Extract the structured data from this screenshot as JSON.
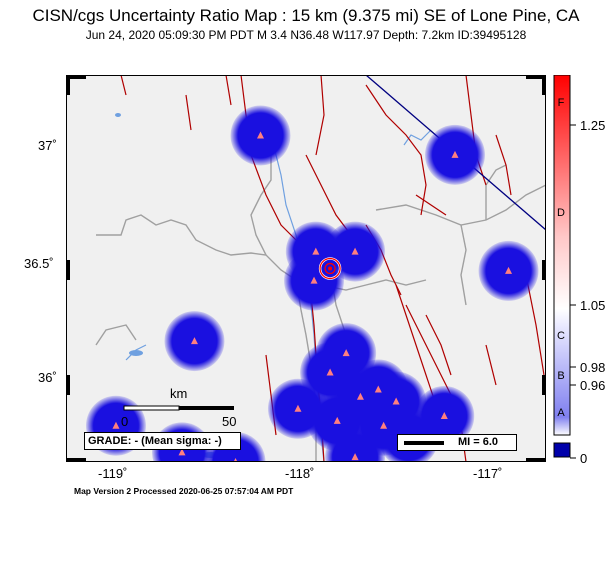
{
  "title": "CISN/cgs Uncertainty Ratio Map : 15 km (9.375 mi) SE of Lone Pine, CA",
  "subtitle": "Jun 24, 2020 05:09:30 PM PDT   M 3.4   N36.48 W117.97   Depth: 7.2km   ID:39495128",
  "lat_ticks": [
    "37˚",
    "36.5˚",
    "36˚"
  ],
  "lon_ticks": [
    "-119˚",
    "-118˚",
    "-117˚"
  ],
  "colorbar": {
    "letters": [
      "F",
      "D",
      "C",
      "B",
      "A"
    ],
    "values": [
      "1.25",
      "1.05",
      "0.98",
      "0.96",
      "0"
    ],
    "bottom_color": "#0000aa",
    "top_color": "#ff0000"
  },
  "scale": {
    "unit": "km",
    "left": "0",
    "right": "50"
  },
  "grade_box": "GRADE: - (Mean sigma: -)",
  "mi_legend": "MI = 6.0",
  "footer": "Map Version 2 Processed 2020-06-25 07:57:04 AM PDT",
  "colors": {
    "map_bg": "#f0f0f0",
    "uncertainty_blob": "#1a10e0",
    "fault": "#b00000",
    "river": "#6fa0e0",
    "county": "#a0a0a0",
    "station": "#ff7f7f",
    "epicenter": "#ff0000"
  },
  "stations": [
    {
      "lon": -118.36,
      "lat": 37.03
    },
    {
      "lon": -117.27,
      "lat": 36.95
    },
    {
      "lon": -118.05,
      "lat": 36.55
    },
    {
      "lon": -117.83,
      "lat": 36.55
    },
    {
      "lon": -118.06,
      "lat": 36.43
    },
    {
      "lon": -116.97,
      "lat": 36.47
    },
    {
      "lon": -118.73,
      "lat": 36.18
    },
    {
      "lon": -117.88,
      "lat": 36.13
    },
    {
      "lon": -117.97,
      "lat": 36.05
    },
    {
      "lon": -117.8,
      "lat": 35.95
    },
    {
      "lon": -117.7,
      "lat": 35.98
    },
    {
      "lon": -117.6,
      "lat": 35.93
    },
    {
      "lon": -118.15,
      "lat": 35.9
    },
    {
      "lon": -117.93,
      "lat": 35.85
    },
    {
      "lon": -117.67,
      "lat": 35.83
    },
    {
      "lon": -117.33,
      "lat": 35.87
    },
    {
      "lon": -119.17,
      "lat": 35.83
    },
    {
      "lon": -118.8,
      "lat": 35.72
    },
    {
      "lon": -118.5,
      "lat": 35.68
    },
    {
      "lon": -117.53,
      "lat": 35.78
    },
    {
      "lon": -117.83,
      "lat": 35.7
    }
  ],
  "epicenter": {
    "lon": -117.97,
    "lat": 36.48
  }
}
